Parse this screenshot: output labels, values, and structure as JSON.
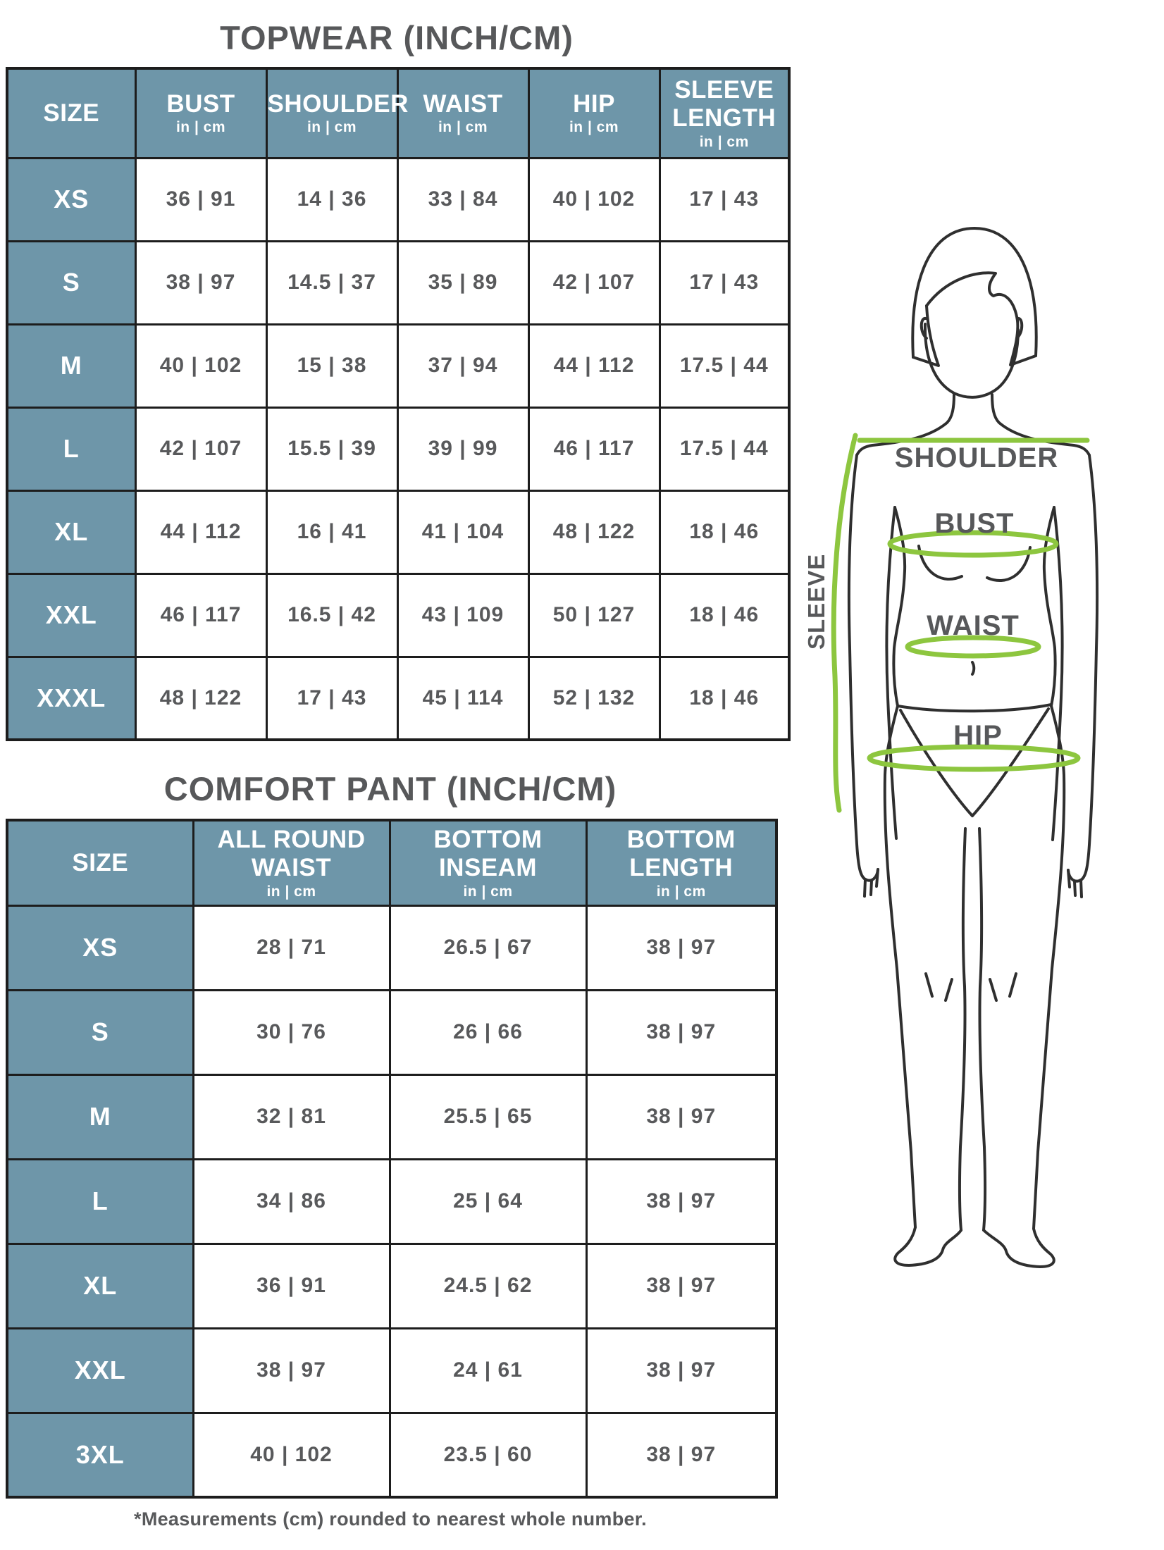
{
  "colors": {
    "header_blue": "#6e96a9",
    "border": "#1d1d1d",
    "text_dark": "#58595b",
    "measure_green": "#8dc63f",
    "background": "#ffffff"
  },
  "topwear": {
    "title": "TOPWEAR (INCH/CM)",
    "headers": [
      {
        "label": "SIZE",
        "unit": ""
      },
      {
        "label": "BUST",
        "unit": "in | cm"
      },
      {
        "label": "SHOULDER",
        "unit": "in | cm"
      },
      {
        "label": "WAIST",
        "unit": "in | cm"
      },
      {
        "label": "HIP",
        "unit": "in | cm"
      },
      {
        "label": "SLEEVE LENGTH",
        "unit": "in | cm"
      }
    ],
    "rows": [
      {
        "size": "XS",
        "cells": [
          "36 | 91",
          "14 | 36",
          "33 | 84",
          "40 | 102",
          "17 | 43"
        ]
      },
      {
        "size": "S",
        "cells": [
          "38 | 97",
          "14.5 | 37",
          "35 | 89",
          "42 | 107",
          "17 | 43"
        ]
      },
      {
        "size": "M",
        "cells": [
          "40 | 102",
          "15 | 38",
          "37 | 94",
          "44 | 112",
          "17.5 | 44"
        ]
      },
      {
        "size": "L",
        "cells": [
          "42 | 107",
          "15.5 | 39",
          "39 | 99",
          "46 | 117",
          "17.5 | 44"
        ]
      },
      {
        "size": "XL",
        "cells": [
          "44 | 112",
          "16 | 41",
          "41 | 104",
          "48 | 122",
          "18 | 46"
        ]
      },
      {
        "size": "XXL",
        "cells": [
          "46 | 117",
          "16.5 | 42",
          "43 | 109",
          "50 | 127",
          "18 | 46"
        ]
      },
      {
        "size": "XXXL",
        "cells": [
          "48 | 122",
          "17 | 43",
          "45 | 114",
          "52 | 132",
          "18 | 46"
        ]
      }
    ]
  },
  "comfort_pant": {
    "title": "COMFORT PANT (INCH/CM)",
    "headers": [
      {
        "label": "SIZE",
        "unit": ""
      },
      {
        "label": "ALL ROUND WAIST",
        "unit": "in | cm"
      },
      {
        "label": "BOTTOM INSEAM",
        "unit": "in | cm"
      },
      {
        "label": "BOTTOM LENGTH",
        "unit": "in | cm"
      }
    ],
    "rows": [
      {
        "size": "XS",
        "cells": [
          "28 | 71",
          "26.5 | 67",
          "38 | 97"
        ]
      },
      {
        "size": "S",
        "cells": [
          "30 | 76",
          "26 | 66",
          "38 | 97"
        ]
      },
      {
        "size": "M",
        "cells": [
          "32 | 81",
          "25.5 | 65",
          "38 | 97"
        ]
      },
      {
        "size": "L",
        "cells": [
          "34 | 86",
          "25 | 64",
          "38 | 97"
        ]
      },
      {
        "size": "XL",
        "cells": [
          "36 | 91",
          "24.5 | 62",
          "38 | 97"
        ]
      },
      {
        "size": "XXL",
        "cells": [
          "38 | 97",
          "24 | 61",
          "38 | 97"
        ]
      },
      {
        "size": "3XL",
        "cells": [
          "40 | 102",
          "23.5 | 60",
          "38 | 97"
        ]
      }
    ]
  },
  "footnote": "*Measurements (cm) rounded to nearest whole number.",
  "figure": {
    "labels": {
      "shoulder": "SHOULDER",
      "bust": "BUST",
      "waist": "WAIST",
      "hip": "HIP",
      "sleeve": "SLEEVE"
    }
  }
}
